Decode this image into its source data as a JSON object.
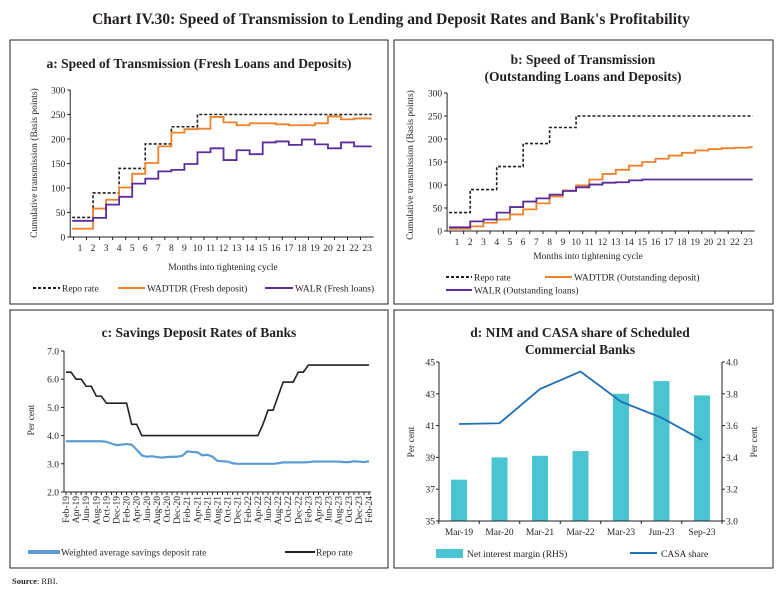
{
  "title": "Chart IV.30: Speed of Transmission to Lending and Deposit Rates and Bank's Profitability",
  "source_label": "Source",
  "source_text": ": RBI.",
  "colors": {
    "repo": "#231f20",
    "wadtdr": "#F0812A",
    "walr": "#5B2C9E",
    "savings": "#5B9BD5",
    "nim_bar": "#4BC4D1",
    "casa": "#1F6FB5"
  },
  "chart_data": [
    {
      "type": "line",
      "step": true,
      "title": "a: Speed of Transmission (Fresh Loans and Deposits)",
      "xlabel": "Months into tightening cycle",
      "ylabel": "Cumulative transmission (Basis points)",
      "ylim": [
        0,
        300
      ],
      "yticks": [
        "0",
        "50",
        "100",
        "150",
        "200",
        "250",
        "300"
      ],
      "categories": [
        "1",
        "2",
        "3",
        "4",
        "5",
        "6",
        "7",
        "8",
        "9",
        "10",
        "11",
        "12",
        "13",
        "14",
        "15",
        "16",
        "17",
        "18",
        "19",
        "20",
        "21",
        "22",
        "23"
      ],
      "grid": false,
      "legend": "bottom",
      "series": [
        {
          "name": "Repo rate",
          "style": "dashed",
          "values": [
            40,
            90,
            90,
            140,
            140,
            190,
            190,
            225,
            225,
            250,
            250,
            250,
            250,
            250,
            250,
            250,
            250,
            250,
            250,
            250,
            250,
            250,
            250
          ]
        },
        {
          "name": "WADTDR (Fresh deposit)",
          "values": [
            17,
            58,
            76,
            101,
            129,
            151,
            185,
            213,
            220,
            221,
            245,
            234,
            228,
            232,
            232,
            230,
            228,
            228,
            232,
            246,
            240,
            242,
            242
          ]
        },
        {
          "name": "WALR (Fresh loans)",
          "values": [
            33,
            39,
            66,
            82,
            109,
            119,
            134,
            137,
            149,
            173,
            181,
            157,
            177,
            169,
            193,
            195,
            188,
            199,
            189,
            181,
            193,
            185,
            185
          ]
        }
      ]
    },
    {
      "type": "line",
      "step": true,
      "title": [
        "b: Speed of Transmission",
        "(Outstanding Loans and Deposits)"
      ],
      "xlabel": "Months into tightening cycle",
      "ylabel": "Cumulative transmission (Basis points)",
      "ylim": [
        0,
        300
      ],
      "yticks": [
        "0",
        "50",
        "100",
        "150",
        "200",
        "250",
        "300"
      ],
      "categories": [
        "1",
        "2",
        "3",
        "4",
        "5",
        "6",
        "7",
        "8",
        "9",
        "10",
        "11",
        "12",
        "13",
        "14",
        "15",
        "16",
        "17",
        "18",
        "19",
        "20",
        "21",
        "22",
        "23"
      ],
      "grid": false,
      "legend": "bottom",
      "series": [
        {
          "name": "Repo rate",
          "style": "dashed",
          "values": [
            40,
            90,
            90,
            140,
            140,
            190,
            190,
            225,
            225,
            250,
            250,
            250,
            250,
            250,
            250,
            250,
            250,
            250,
            250,
            250,
            250,
            250,
            250
          ]
        },
        {
          "name": "WADTDR (Outstanding deposit)",
          "values": [
            5,
            10,
            18,
            25,
            36,
            47,
            60,
            75,
            88,
            99,
            112,
            124,
            133,
            142,
            150,
            157,
            164,
            170,
            175,
            178,
            180,
            181,
            182
          ]
        },
        {
          "name": "WALR (Outstanding loans)",
          "values": [
            8,
            21,
            25,
            40,
            52,
            64,
            71,
            79,
            87,
            95,
            101,
            105,
            106,
            110,
            112,
            112,
            112,
            112,
            112,
            112,
            112,
            112,
            112
          ]
        }
      ]
    },
    {
      "type": "line",
      "title": "c: Savings Deposit Rates of Banks",
      "ylabel": "Per cent",
      "ylim": [
        2.0,
        7.0
      ],
      "yticks": [
        "2.0",
        "3.0",
        "4.0",
        "5.0",
        "6.0",
        "7.0"
      ],
      "x_range": [
        "Feb-19",
        "Feb-24"
      ],
      "x_frequency": "monthly",
      "xtick_labels": [
        "Feb-19",
        "Apr-19",
        "Jun-19",
        "Aug-19",
        "Oct-19",
        "Dec-19",
        "Feb-20",
        "Apr-20",
        "Jun-20",
        "Aug-20",
        "Oct-20",
        "Dec-20",
        "Feb-21",
        "Apr-21",
        "Jun-21",
        "Aug-21",
        "Oct-21",
        "Dec-21",
        "Feb-22",
        "Apr-22",
        "Jun-22",
        "Aug-22",
        "Oct-22",
        "Dec-22",
        "Feb-23",
        "Apr-23",
        "Jun-23",
        "Aug-23",
        "Oct-23",
        "Dec-23",
        "Feb-24"
      ],
      "grid": false,
      "legend": "bottom",
      "series": [
        {
          "name": "Weighted average savings deposit rate",
          "values": [
            3.8,
            3.8,
            3.8,
            3.8,
            3.8,
            3.8,
            3.8,
            3.8,
            3.78,
            3.72,
            3.66,
            3.68,
            3.7,
            3.68,
            3.5,
            3.3,
            3.25,
            3.27,
            3.24,
            3.22,
            3.24,
            3.25,
            3.25,
            3.28,
            3.44,
            3.42,
            3.41,
            3.3,
            3.32,
            3.25,
            3.1,
            3.09,
            3.08,
            3.02,
            3.0,
            3.0,
            3.0,
            3.0,
            3.0,
            3.0,
            3.0,
            3.0,
            3.02,
            3.05,
            3.05,
            3.05,
            3.05,
            3.05,
            3.06,
            3.08,
            3.08,
            3.08,
            3.08,
            3.08,
            3.08,
            3.06,
            3.06,
            3.09,
            3.08,
            3.06,
            3.09
          ]
        },
        {
          "name": "Repo rate",
          "values": [
            6.25,
            6.25,
            6.0,
            6.0,
            5.75,
            5.75,
            5.4,
            5.4,
            5.15,
            5.15,
            5.15,
            5.15,
            5.15,
            4.4,
            4.4,
            4.0,
            4.0,
            4.0,
            4.0,
            4.0,
            4.0,
            4.0,
            4.0,
            4.0,
            4.0,
            4.0,
            4.0,
            4.0,
            4.0,
            4.0,
            4.0,
            4.0,
            4.0,
            4.0,
            4.0,
            4.0,
            4.0,
            4.0,
            4.0,
            4.4,
            4.9,
            4.9,
            5.4,
            5.9,
            5.9,
            5.9,
            6.25,
            6.25,
            6.5,
            6.5,
            6.5,
            6.5,
            6.5,
            6.5,
            6.5,
            6.5,
            6.5,
            6.5,
            6.5,
            6.5,
            6.5
          ]
        }
      ]
    },
    {
      "type": "bar+line",
      "title": [
        "d: NIM and CASA share of Scheduled",
        "Commercial Banks"
      ],
      "ylabel_left": "Per cent",
      "ylabel_right": "Per cent",
      "ylim_left": [
        35,
        45
      ],
      "ylim_right": [
        3.0,
        4.0
      ],
      "yticks_left": [
        "35",
        "37",
        "39",
        "41",
        "43",
        "45"
      ],
      "yticks_right": [
        "3.0",
        "3.2",
        "3.4",
        "3.6",
        "3.8",
        "4.0"
      ],
      "categories": [
        "Mar-19",
        "Mar-20",
        "Mar-21",
        "Mar-22",
        "Mar-23",
        "Jun-23",
        "Sep-23"
      ],
      "grid": false,
      "legend": "bottom",
      "series": [
        {
          "name": "Net interest margin (RHS)",
          "type": "bar",
          "axis": "right",
          "values": [
            3.26,
            3.4,
            3.41,
            3.44,
            3.8,
            3.88,
            3.79
          ]
        },
        {
          "name": "CASA share",
          "type": "line",
          "axis": "left",
          "values": [
            41.1,
            41.15,
            43.3,
            44.4,
            42.5,
            41.5,
            40.1
          ]
        }
      ]
    }
  ]
}
